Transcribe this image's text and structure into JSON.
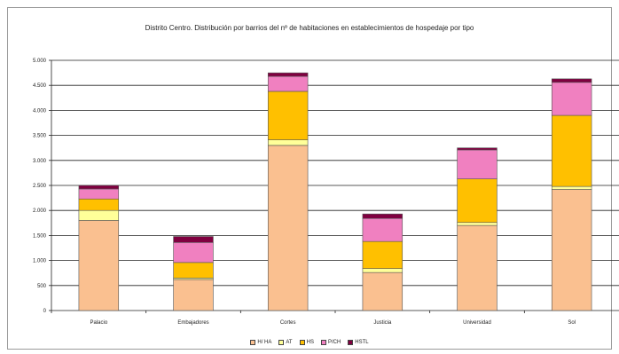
{
  "chart_data": {
    "type": "bar",
    "stacked": true,
    "title": "Distrito Centro. Distribución por barrios del nº de habitaciones en establecimientos de hospedaje por tipo",
    "xlabel": "",
    "ylabel": "",
    "ylim": [
      0,
      5000
    ],
    "yticks": [
      0,
      500,
      1000,
      1500,
      2000,
      2500,
      3000,
      3500,
      4000,
      4500,
      5000
    ],
    "ytick_labels": [
      "0",
      "500",
      "1.000",
      "1.500",
      "2.000",
      "2.500",
      "3.000",
      "3.500",
      "4.000",
      "4.500",
      "5.000"
    ],
    "grid": true,
    "legend_position": "bottom",
    "categories": [
      "Palacio",
      "Embajadores",
      "Cortes",
      "Justicia",
      "Universidad",
      "Sol"
    ],
    "series": [
      {
        "name": "H/ HA",
        "color": "#fac090",
        "values": [
          1800,
          620,
          3300,
          760,
          1700,
          2420
        ]
      },
      {
        "name": "AT",
        "color": "#ffff99",
        "values": [
          200,
          30,
          110,
          80,
          60,
          60
        ]
      },
      {
        "name": "HS",
        "color": "#ffc000",
        "values": [
          230,
          310,
          970,
          540,
          870,
          1420
        ]
      },
      {
        "name": "P/CH",
        "color": "#f080c0",
        "values": [
          200,
          400,
          300,
          460,
          580,
          660
        ]
      },
      {
        "name": "HSTL",
        "color": "#800040",
        "values": [
          70,
          120,
          70,
          90,
          40,
          70
        ]
      }
    ]
  }
}
